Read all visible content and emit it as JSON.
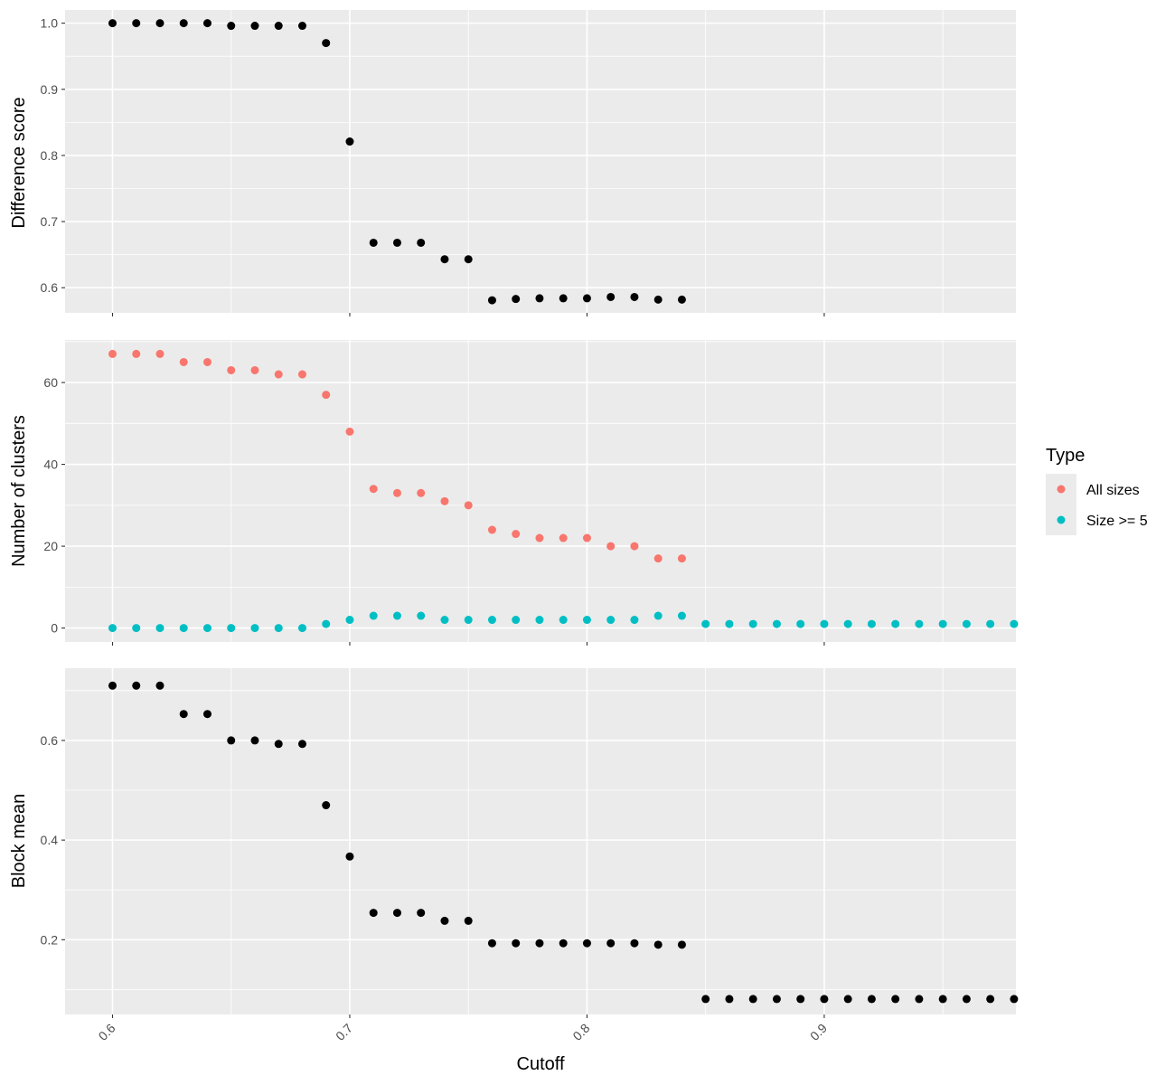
{
  "chart_data": {
    "type": "scatter",
    "shared_x_axis": {
      "label": "Cutoff",
      "range": [
        0.58,
        0.9808
      ],
      "ticks": [
        0.6,
        0.7,
        0.8,
        0.9
      ],
      "tick_labels": [
        "0.6",
        "0.7",
        "0.8",
        "0.9"
      ]
    },
    "panels": [
      {
        "ylabel": "Difference score",
        "ylim": [
          0.562,
          1.02
        ],
        "yticks": [
          0.6,
          0.7,
          0.8,
          0.9,
          1.0
        ],
        "ytick_labels": [
          "0.6",
          "0.7",
          "0.8",
          "0.9",
          "1.0"
        ],
        "series": [
          {
            "color": "#000000",
            "x": [
              0.6,
              0.61,
              0.62,
              0.63,
              0.64,
              0.65,
              0.66,
              0.67,
              0.68,
              0.69,
              0.7,
              0.71,
              0.72,
              0.73,
              0.74,
              0.75,
              0.76,
              0.77,
              0.78,
              0.79,
              0.8,
              0.81,
              0.82,
              0.83,
              0.84
            ],
            "y": [
              1.0,
              1.0,
              1.0,
              1.0,
              1.0,
              0.996,
              0.996,
              0.996,
              0.996,
              0.97,
              0.821,
              0.668,
              0.668,
              0.668,
              0.643,
              0.643,
              0.581,
              0.583,
              0.584,
              0.584,
              0.584,
              0.586,
              0.586,
              0.582,
              0.582
            ]
          }
        ]
      },
      {
        "ylabel": "Number of clusters",
        "ylim": [
          -3.4,
          70.4
        ],
        "yticks": [
          0,
          20,
          40,
          60
        ],
        "ytick_labels": [
          "0",
          "20",
          "40",
          "60"
        ],
        "series": [
          {
            "name": "All sizes",
            "color": "#F8766D",
            "x": [
              0.6,
              0.61,
              0.62,
              0.63,
              0.64,
              0.65,
              0.66,
              0.67,
              0.68,
              0.69,
              0.7,
              0.71,
              0.72,
              0.73,
              0.74,
              0.75,
              0.76,
              0.77,
              0.78,
              0.79,
              0.8,
              0.81,
              0.82,
              0.83,
              0.84
            ],
            "y": [
              67,
              67,
              67,
              65,
              65,
              63,
              63,
              62,
              62,
              57,
              48,
              34,
              33,
              33,
              31,
              30,
              24,
              23,
              22,
              22,
              22,
              20,
              20,
              17,
              17
            ]
          },
          {
            "name": "Size >= 5",
            "color": "#00BFC4",
            "x": [
              0.6,
              0.61,
              0.62,
              0.63,
              0.64,
              0.65,
              0.66,
              0.67,
              0.68,
              0.69,
              0.7,
              0.71,
              0.72,
              0.73,
              0.74,
              0.75,
              0.76,
              0.77,
              0.78,
              0.79,
              0.8,
              0.81,
              0.82,
              0.83,
              0.84,
              0.85,
              0.86,
              0.87,
              0.88,
              0.89,
              0.9,
              0.91,
              0.92,
              0.93,
              0.94,
              0.95,
              0.96,
              0.97,
              0.98
            ],
            "y": [
              0,
              0,
              0,
              0,
              0,
              0,
              0,
              0,
              0,
              1,
              2,
              3,
              3,
              3,
              2,
              2,
              2,
              2,
              2,
              2,
              2,
              2,
              2,
              3,
              3,
              1,
              1,
              1,
              1,
              1,
              1,
              1,
              1,
              1,
              1,
              1,
              1,
              1,
              1
            ]
          }
        ]
      },
      {
        "ylabel": "Block mean",
        "ylim": [
          0.05,
          0.745
        ],
        "yticks": [
          0.2,
          0.4,
          0.6
        ],
        "ytick_labels": [
          "0.2",
          "0.4",
          "0.6"
        ],
        "series": [
          {
            "color": "#000000",
            "x": [
              0.6,
              0.61,
              0.62,
              0.63,
              0.64,
              0.65,
              0.66,
              0.67,
              0.68,
              0.69,
              0.7,
              0.71,
              0.72,
              0.73,
              0.74,
              0.75,
              0.76,
              0.77,
              0.78,
              0.79,
              0.8,
              0.81,
              0.82,
              0.83,
              0.84,
              0.85,
              0.86,
              0.87,
              0.88,
              0.89,
              0.9,
              0.91,
              0.92,
              0.93,
              0.94,
              0.95,
              0.96,
              0.97,
              0.98
            ],
            "y": [
              0.71,
              0.71,
              0.71,
              0.653,
              0.653,
              0.6,
              0.6,
              0.593,
              0.593,
              0.47,
              0.367,
              0.254,
              0.254,
              0.254,
              0.238,
              0.238,
              0.193,
              0.193,
              0.193,
              0.193,
              0.193,
              0.193,
              0.193,
              0.19,
              0.19,
              0.081,
              0.081,
              0.081,
              0.081,
              0.081,
              0.081,
              0.081,
              0.081,
              0.081,
              0.081,
              0.081,
              0.081,
              0.081,
              0.081
            ]
          }
        ]
      }
    ],
    "legend": {
      "title": "Type",
      "placement": "right",
      "entries": [
        {
          "label": "All sizes",
          "color": "#F8766D"
        },
        {
          "label": "Size >= 5",
          "color": "#00BFC4"
        }
      ]
    },
    "grid": true
  }
}
